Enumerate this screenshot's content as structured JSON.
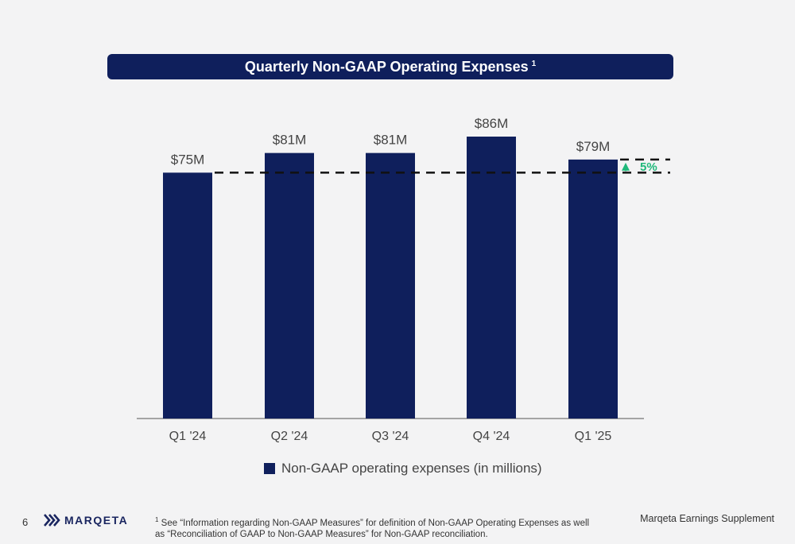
{
  "title": "Quarterly Non-GAAP Operating Expenses",
  "title_superscript": "1",
  "chart_data": {
    "type": "bar",
    "categories": [
      "Q1 '24",
      "Q2 '24",
      "Q3 '24",
      "Q4 '24",
      "Q1 '25"
    ],
    "values": [
      75,
      81,
      81,
      86,
      79
    ],
    "data_labels": [
      "$75M",
      "$81M",
      "$81M",
      "$86M",
      "$79M"
    ],
    "units": "millions USD",
    "series_name": "Non-GAAP operating expenses (in millions)",
    "reference_line": 75,
    "annotation": {
      "label": "5%",
      "from": 75,
      "to": 79,
      "direction": "up",
      "color": "#1fb87a"
    },
    "bar_color": "#0f1f5c",
    "legend_position": "bottom-center",
    "grid": false
  },
  "footer": {
    "page_number": "6",
    "logo_text": "MARQETA",
    "footnote_marker": "1",
    "footnote_text": "See “Information regarding Non-GAAP Measures” for definition of Non-GAAP Operating Expenses as well as “Reconciliation of GAAP to Non-GAAP Measures” for Non-GAAP reconciliation.",
    "supplement_label": "Marqeta Earnings Supplement"
  }
}
